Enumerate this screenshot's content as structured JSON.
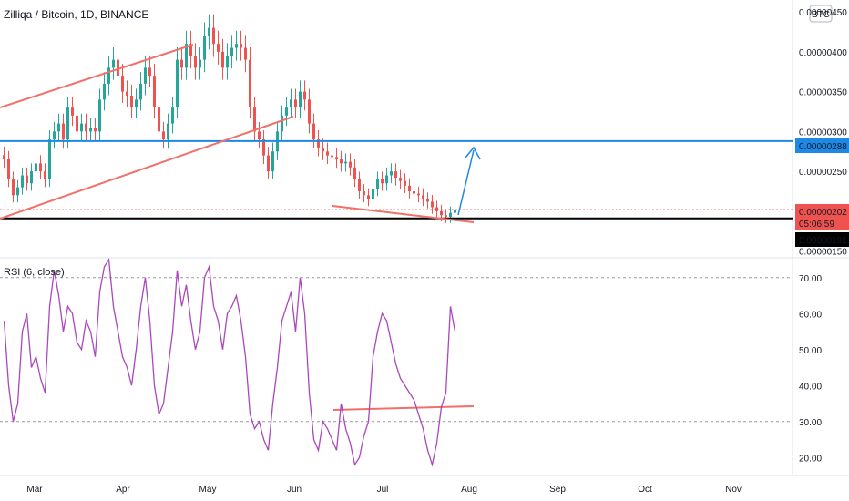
{
  "title": "Zilliqa / Bitcoin, 1D, BINANCE",
  "currency_badge": "BTC",
  "rsi_label": "RSI (6, close)",
  "price_axis": {
    "ticks": [
      "0.00000450",
      "0.00000400",
      "0.00000350",
      "0.00000300",
      "0.00000250",
      "0.00000150"
    ],
    "badges": {
      "blue_level": "0.00000288",
      "last_price": "0.00000202",
      "countdown": "05:06:59",
      "black_level": "0.00000191"
    }
  },
  "rsi_axis": {
    "ticks": [
      "70.00",
      "60.00",
      "50.00",
      "40.00",
      "30.00",
      "20.00"
    ]
  },
  "time_axis": [
    "Mar",
    "Apr",
    "May",
    "Jun",
    "Jul",
    "Aug",
    "Sep",
    "Oct",
    "Nov"
  ],
  "colors": {
    "up": "#26a69a",
    "down": "#ef5350",
    "trend": "#f0706a",
    "blue_line": "#1e88e5",
    "black_line": "#000000",
    "rsi": "#ab47bc",
    "arrow": "#1e88e5"
  },
  "chart_data": [
    {
      "type": "candlestick",
      "title": "Zilliqa / Bitcoin, 1D, BINANCE",
      "y_range": [
        1.45e-06,
        4.65e-06
      ],
      "x_categories": [
        "Mar",
        "Apr",
        "May",
        "Jun",
        "Jul",
        "Aug",
        "Sep",
        "Oct",
        "Nov"
      ],
      "horizontal_levels": [
        {
          "value": 2.88e-06,
          "color": "#1e88e5"
        },
        {
          "value": 1.91e-06,
          "color": "#000000"
        }
      ],
      "last_price": 2.02e-06,
      "ohlc_close_path": [
        2.65e-06,
        2.4e-06,
        2.2e-06,
        2.3e-06,
        2.45e-06,
        2.35e-06,
        2.5e-06,
        2.6e-06,
        2.5e-06,
        2.4e-06,
        2.9e-06,
        3e-06,
        3.1e-06,
        2.9e-06,
        3.3e-06,
        3.2e-06,
        3e-06,
        3.1e-06,
        3e-06,
        3.05e-06,
        3e-06,
        3.4e-06,
        3.6e-06,
        3.8e-06,
        3.9e-06,
        3.7e-06,
        3.5e-06,
        3.45e-06,
        3.3e-06,
        3.4e-06,
        3.6e-06,
        3.8e-06,
        3.7e-06,
        3.3e-06,
        3e-06,
        2.9e-06,
        3.1e-06,
        3.3e-06,
        3.9e-06,
        3.8e-06,
        4.1e-06,
        3.95e-06,
        3.8e-06,
        3.9e-06,
        4.2e-06,
        4.3e-06,
        4.1e-06,
        4e-06,
        3.8e-06,
        3.95e-06,
        4.05e-06,
        4.1e-06,
        4.05e-06,
        3.9e-06,
        3.3e-06,
        3e-06,
        2.9e-06,
        2.7e-06,
        2.5e-06,
        2.75e-06,
        3e-06,
        3.2e-06,
        3.3e-06,
        3.4e-06,
        3.3e-06,
        3.5e-06,
        3.4e-06,
        3.1e-06,
        2.9e-06,
        2.8e-06,
        2.75e-06,
        2.7e-06,
        2.68e-06,
        2.65e-06,
        2.6e-06,
        2.62e-06,
        2.55e-06,
        2.4e-06,
        2.25e-06,
        2.2e-06,
        2.15e-06,
        2.28e-06,
        2.4e-06,
        2.35e-06,
        2.45e-06,
        2.5e-06,
        2.42e-06,
        2.38e-06,
        2.32e-06,
        2.25e-06,
        2.22e-06,
        2.2e-06,
        2.15e-06,
        2.12e-06,
        2.05e-06,
        2e-06,
        1.95e-06,
        1.93e-06,
        1.98e-06,
        2.02e-06
      ]
    },
    {
      "type": "line",
      "title": "RSI (6, close)",
      "y_range": [
        15,
        75
      ],
      "horizontal_levels": [
        70,
        30
      ],
      "series": [
        {
          "values": [
            58,
            40,
            30,
            35,
            55,
            60,
            45,
            48,
            42,
            38,
            62,
            72,
            65,
            55,
            62,
            60,
            52,
            50,
            58,
            55,
            48,
            66,
            73,
            75,
            62,
            55,
            48,
            45,
            40,
            50,
            62,
            70,
            58,
            40,
            32,
            35,
            45,
            55,
            72,
            62,
            68,
            58,
            50,
            55,
            70,
            73,
            62,
            58,
            50,
            60,
            62,
            65,
            58,
            48,
            32,
            28,
            30,
            25,
            22,
            35,
            45,
            58,
            62,
            66,
            55,
            70,
            60,
            38,
            25,
            22,
            30,
            28,
            25,
            22,
            35,
            28,
            24,
            18,
            20,
            26,
            30,
            48,
            55,
            60,
            58,
            52,
            46,
            42,
            40,
            38,
            36,
            32,
            28,
            22,
            18,
            24,
            34,
            38,
            62,
            55
          ]
        }
      ]
    }
  ]
}
